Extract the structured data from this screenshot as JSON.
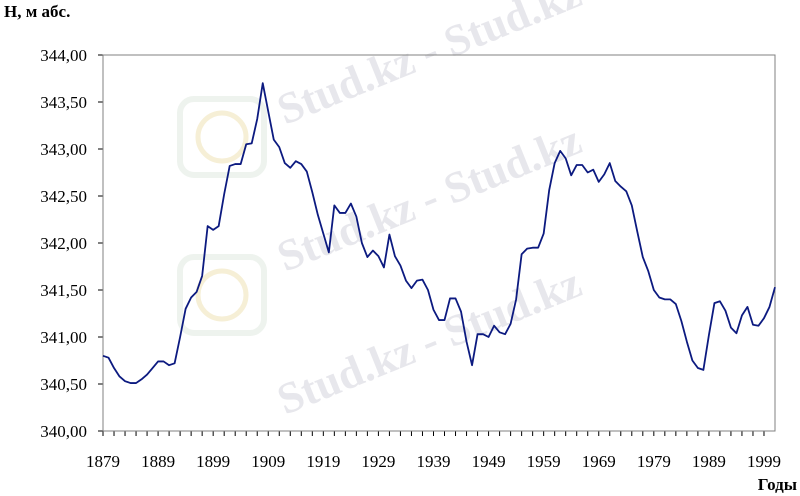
{
  "chart_data": {
    "type": "line",
    "title": "",
    "ylabel": "Н, м абс.",
    "xlabel": "Годы",
    "xlim": [
      1879,
      2001
    ],
    "ylim": [
      340.0,
      344.0
    ],
    "x_ticks": [
      "1879",
      "1889",
      "1899",
      "1909",
      "1919",
      "1929",
      "1939",
      "1949",
      "1959",
      "1969",
      "1979",
      "1989",
      "1999"
    ],
    "y_ticks": [
      "340,00",
      "340,50",
      "341,00",
      "341,50",
      "342,00",
      "342,50",
      "343,00",
      "343,50",
      "344,00"
    ],
    "grid": false,
    "line_color": "#0c1a80",
    "series": [
      {
        "x": [
          1879,
          1880,
          1881,
          1882,
          1883,
          1884,
          1885,
          1886,
          1887,
          1888,
          1889,
          1890,
          1891,
          1892,
          1893,
          1894,
          1895,
          1896,
          1897,
          1898,
          1899,
          1900,
          1901,
          1902,
          1903,
          1904,
          1905,
          1906,
          1907,
          1908,
          1909,
          1910,
          1911,
          1912,
          1913,
          1914,
          1915,
          1916,
          1917,
          1918,
          1919,
          1920,
          1921,
          1922,
          1923,
          1924,
          1925,
          1926,
          1927,
          1928,
          1929,
          1930,
          1931,
          1932,
          1933,
          1934,
          1935,
          1936,
          1937,
          1938,
          1939,
          1940,
          1941,
          1942,
          1943,
          1944,
          1945,
          1946,
          1947,
          1948,
          1949,
          1950,
          1951,
          1952,
          1953,
          1954,
          1955,
          1956,
          1957,
          1958,
          1959,
          1960,
          1961,
          1962,
          1963,
          1964,
          1965,
          1966,
          1967,
          1968,
          1969,
          1970,
          1971,
          1972,
          1973,
          1974,
          1975,
          1976,
          1977,
          1978,
          1979,
          1980,
          1981,
          1982,
          1983,
          1984,
          1985,
          1986,
          1987,
          1988,
          1989,
          1990,
          1991,
          1992,
          1993,
          1994,
          1995,
          1996,
          1997,
          1998,
          1999,
          2000,
          2001
        ],
        "y": [
          340.8,
          340.78,
          340.67,
          340.58,
          340.53,
          340.51,
          340.51,
          340.55,
          340.6,
          340.67,
          340.74,
          340.74,
          340.7,
          340.72,
          341.0,
          341.3,
          341.42,
          341.48,
          341.65,
          342.18,
          342.14,
          342.18,
          342.52,
          342.82,
          342.84,
          342.84,
          343.05,
          343.06,
          343.32,
          343.7,
          343.4,
          343.1,
          343.02,
          342.85,
          342.8,
          342.87,
          342.84,
          342.76,
          342.54,
          342.3,
          342.1,
          341.9,
          342.4,
          342.32,
          342.32,
          342.42,
          342.28,
          342.0,
          341.85,
          341.92,
          341.86,
          341.74,
          342.09,
          341.86,
          341.76,
          341.6,
          341.52,
          341.6,
          341.61,
          341.5,
          341.29,
          341.18,
          341.18,
          341.41,
          341.41,
          341.27,
          340.95,
          340.7,
          341.03,
          341.03,
          341.0,
          341.12,
          341.05,
          341.03,
          341.14,
          341.4,
          341.88,
          341.94,
          341.95,
          341.95,
          342.1,
          342.56,
          342.85,
          342.98,
          342.9,
          342.72,
          342.83,
          342.83,
          342.75,
          342.78,
          342.65,
          342.73,
          342.85,
          342.66,
          342.6,
          342.55,
          342.4,
          342.12,
          341.85,
          341.7,
          341.5,
          341.42,
          341.4,
          341.4,
          341.35,
          341.17,
          340.95,
          340.75,
          340.67,
          340.65,
          341.02,
          341.36,
          341.38,
          341.28,
          341.1,
          341.04,
          341.23,
          341.32,
          341.13,
          341.12,
          341.2,
          341.32,
          341.53
        ]
      }
    ]
  },
  "watermark": "Stud.kz - Stud.kz"
}
